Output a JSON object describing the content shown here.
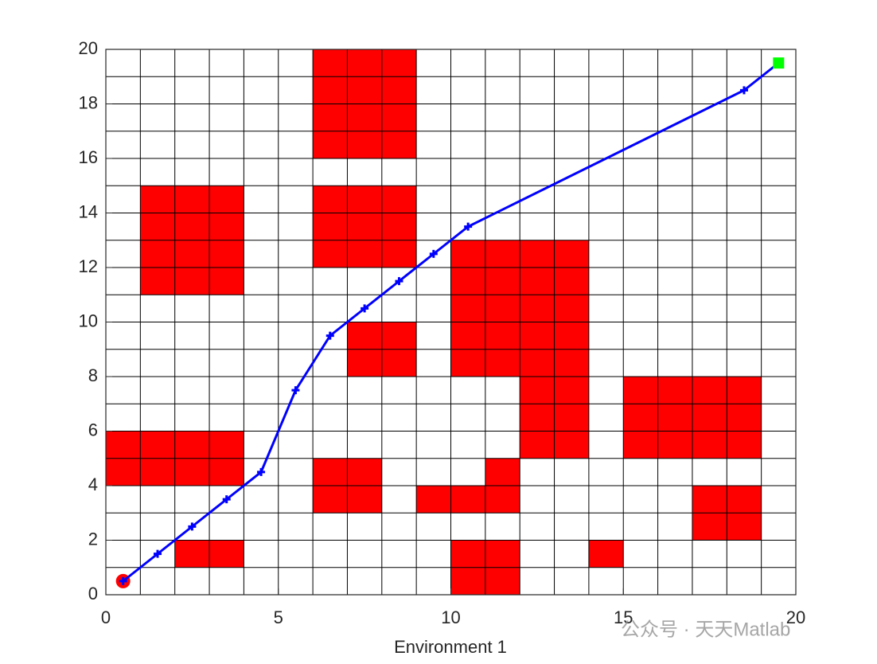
{
  "chart_data": {
    "type": "grid-path",
    "xlabel": "Environment 1",
    "xlim": [
      0,
      20
    ],
    "ylim": [
      0,
      20
    ],
    "xticks": [
      0,
      5,
      10,
      15,
      20
    ],
    "yticks": [
      0,
      2,
      4,
      6,
      8,
      10,
      12,
      14,
      16,
      18,
      20
    ],
    "xgrid": [
      0,
      1,
      2,
      3,
      4,
      5,
      6,
      7,
      8,
      9,
      10,
      11,
      12,
      13,
      14,
      15,
      16,
      17,
      18,
      19,
      20
    ],
    "ygrid": [
      0,
      1,
      2,
      3,
      4,
      5,
      6,
      7,
      8,
      9,
      10,
      11,
      12,
      13,
      14,
      15,
      16,
      17,
      18,
      19,
      20
    ],
    "obstacle_color": "#ff0000",
    "obstacles": [
      {
        "x": [
          6,
          9
        ],
        "y": [
          16,
          20
        ]
      },
      {
        "x": [
          1,
          4
        ],
        "y": [
          11,
          15
        ]
      },
      {
        "x": [
          6,
          9
        ],
        "y": [
          12,
          15
        ]
      },
      {
        "x": [
          7,
          9
        ],
        "y": [
          8,
          10
        ]
      },
      {
        "x": [
          10,
          14
        ],
        "y": [
          8,
          13
        ]
      },
      {
        "x": [
          12,
          14
        ],
        "y": [
          5,
          8
        ]
      },
      {
        "x": [
          15,
          19
        ],
        "y": [
          5,
          8
        ]
      },
      {
        "x": [
          0,
          4
        ],
        "y": [
          4,
          6
        ]
      },
      {
        "x": [
          6,
          8
        ],
        "y": [
          3,
          5
        ]
      },
      {
        "x": [
          9,
          12
        ],
        "y": [
          3,
          4
        ]
      },
      {
        "x": [
          11,
          12
        ],
        "y": [
          4,
          5
        ]
      },
      {
        "x": [
          17,
          19
        ],
        "y": [
          2,
          4
        ]
      },
      {
        "x": [
          2,
          4
        ],
        "y": [
          1,
          2
        ]
      },
      {
        "x": [
          10,
          12
        ],
        "y": [
          0,
          2
        ]
      },
      {
        "x": [
          14,
          15
        ],
        "y": [
          1,
          2
        ]
      }
    ],
    "path": {
      "color": "#0000ff",
      "x": [
        0.5,
        1.5,
        2.5,
        3.5,
        4.5,
        5.5,
        6.5,
        7.5,
        8.5,
        9.5,
        10.5,
        18.5,
        19.5
      ],
      "y": [
        0.5,
        1.5,
        2.5,
        3.5,
        4.5,
        7.5,
        9.5,
        10.5,
        11.5,
        12.5,
        13.5,
        18.5,
        19.5
      ]
    },
    "start": {
      "x": 0.5,
      "y": 0.5,
      "color": "#ff0000"
    },
    "goal": {
      "x": 19.5,
      "y": 19.5,
      "color": "#00ff00"
    },
    "watermark": "公众号 · 天天Matlab"
  }
}
